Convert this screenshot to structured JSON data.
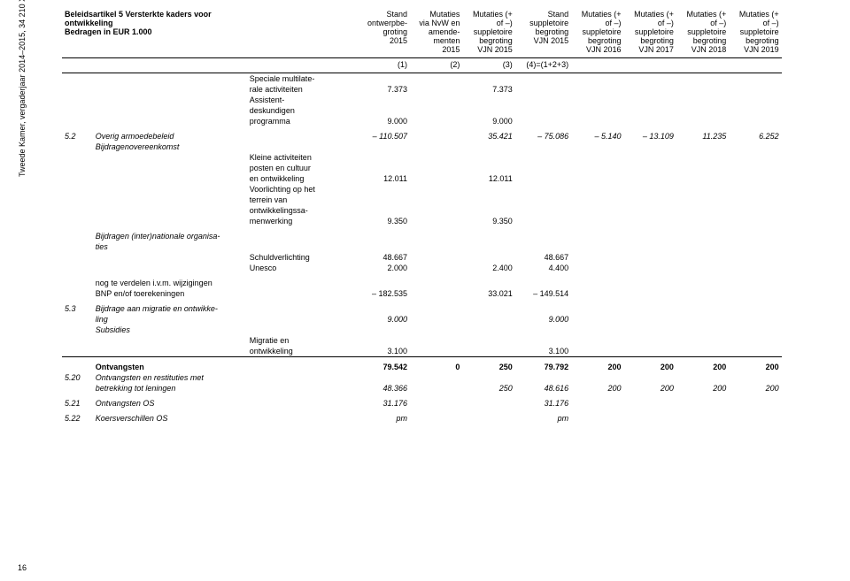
{
  "sidelabel": "Tweede Kamer, vergaderjaar 2014–2015, 34 210 XVII, nr. 2",
  "pagenum": "16",
  "header": {
    "title_l1": "Beleidsartikel 5 Versterkte kaders voor",
    "title_l2": "ontwikkeling",
    "title_l3": "Bedragen in EUR 1.000",
    "cols": [
      [
        "Stand",
        "ontwerpbe-",
        "groting",
        "2015"
      ],
      [
        "Mutaties",
        "via NvW en",
        "amende-",
        "menten",
        "2015"
      ],
      [
        "Mutaties (+",
        "of –)",
        "suppletoire",
        "begroting",
        "VJN 2015"
      ],
      [
        "Stand",
        "suppletoire",
        "begroting",
        "VJN 2015"
      ],
      [
        "Mutaties (+",
        "of –)",
        "suppletoire",
        "begroting",
        "VJN 2016"
      ],
      [
        "Mutaties (+",
        "of –)",
        "suppletoire",
        "begroting",
        "VJN 2017"
      ],
      [
        "Mutaties (+",
        "of –)",
        "suppletoire",
        "begroting",
        "VJN 2018"
      ],
      [
        "Mutaties (+",
        "of –)",
        "suppletoire",
        "begroting",
        "VJN 2019"
      ]
    ],
    "row2": [
      "(1)",
      "(2)",
      "(3)",
      "(4)=(1+2+3)",
      "",
      "",
      "",
      ""
    ]
  },
  "rows": [
    {
      "desc_l": [
        "Speciale multilate-",
        "rale activiteiten"
      ],
      "c4": "7.373",
      "c6": "7.373"
    },
    {
      "desc_l": [
        "Assistent-",
        "deskundigen",
        "programma"
      ],
      "c4": "9.000",
      "c6": "9.000"
    },
    {
      "sep": true,
      "code": "5.2",
      "label": "Overig armoedebeleid",
      "italic": true,
      "c4": "– 110.507",
      "c5": "",
      "c6": "35.421",
      "c7": "– 75.086",
      "c8": "– 5.140",
      "c9": "– 13.109",
      "c10": "11.235",
      "c11": "6.252"
    },
    {
      "label": "Bijdragenovereenkomst",
      "italic": true
    },
    {
      "desc_l": [
        "Kleine activiteiten",
        "posten en cultuur",
        "en ontwikkeling"
      ],
      "c4": "12.011",
      "c6": "12.011"
    },
    {
      "desc_l": [
        "Voorlichting op het",
        "terrein van",
        "ontwikkelingssa-",
        "menwerking"
      ],
      "c4": "9.350",
      "c6": "9.350"
    },
    {
      "sep": true,
      "label_l": [
        "Bijdragen (inter)nationale organisa-",
        "ties"
      ],
      "italic": true
    },
    {
      "desc": "Schuldverlichting",
      "c4": "48.667",
      "c6": "",
      "c7": "48.667"
    },
    {
      "desc": "Unesco",
      "c4": "2.000",
      "c6": "2.400",
      "c7": "4.400"
    },
    {
      "sep": true,
      "label_l": [
        "nog te verdelen i.v.m. wijzigingen",
        "BNP en/of toerekeningen"
      ],
      "c4": "– 182.535",
      "c6": "33.021",
      "c7": "– 149.514"
    },
    {
      "sep": true,
      "code": "5.3",
      "label_l": [
        "Bijdrage aan migratie en ontwikke-",
        "ling"
      ],
      "italic": true,
      "c4": "9.000",
      "c7": "9.000"
    },
    {
      "label": "Subsidies",
      "italic": true
    },
    {
      "desc_l": [
        "Migratie en",
        "ontwikkeling"
      ],
      "c4": "3.100",
      "c7": "3.100"
    },
    {
      "sep": true,
      "hr": true,
      "label": "Ontvangsten",
      "bold": true,
      "c4": "79.542",
      "c5": "0",
      "c6": "250",
      "c7": "79.792",
      "c8": "200",
      "c9": "200",
      "c10": "200",
      "c11": "200"
    },
    {
      "code": "5.20",
      "label_l": [
        "Ontvangsten en restituties met",
        "betrekking tot leningen"
      ],
      "italic": true,
      "c4": "48.366",
      "c6": "250",
      "c7": "48.616",
      "c8": "200",
      "c9": "200",
      "c10": "200",
      "c11": "200"
    },
    {
      "sep": true,
      "code": "5.21",
      "label": "Ontvangsten OS",
      "italic": true,
      "c4": "31.176",
      "c7": "31.176"
    },
    {
      "sep": true,
      "code": "5.22",
      "label": "Koersverschillen OS",
      "italic": true,
      "c4": "pm",
      "c7": "pm"
    }
  ]
}
